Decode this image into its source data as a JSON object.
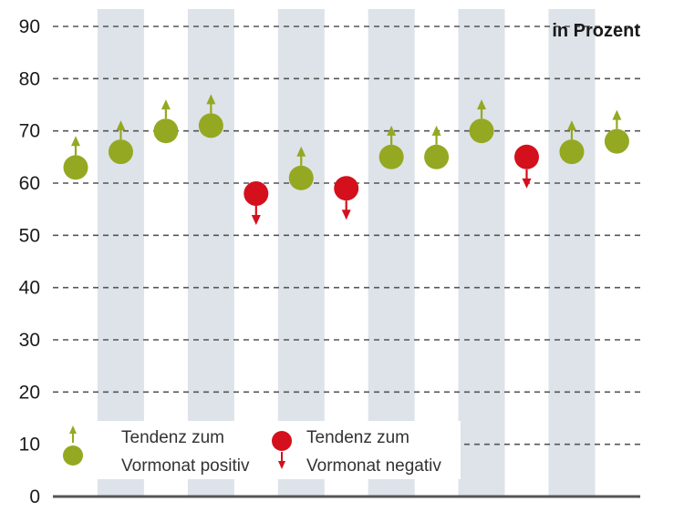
{
  "chart_data": {
    "type": "scatter",
    "unit_label": "in Prozent",
    "ylim": [
      0,
      90
    ],
    "yticks": [
      0,
      10,
      20,
      30,
      40,
      50,
      60,
      70,
      80,
      90
    ],
    "ytick_labels": [
      "0",
      "10",
      "20",
      "30",
      "40",
      "50",
      "60",
      "70",
      "80",
      "90"
    ],
    "grid": true,
    "legend_placement": "bottom-left",
    "points": [
      {
        "index": 1,
        "value": 63,
        "trend": "positive"
      },
      {
        "index": 2,
        "value": 66,
        "trend": "positive"
      },
      {
        "index": 3,
        "value": 70,
        "trend": "positive"
      },
      {
        "index": 4,
        "value": 71,
        "trend": "positive"
      },
      {
        "index": 5,
        "value": 58,
        "trend": "negative"
      },
      {
        "index": 6,
        "value": 61,
        "trend": "positive"
      },
      {
        "index": 7,
        "value": 59,
        "trend": "negative"
      },
      {
        "index": 8,
        "value": 65,
        "trend": "positive"
      },
      {
        "index": 9,
        "value": 65,
        "trend": "positive"
      },
      {
        "index": 10,
        "value": 70,
        "trend": "positive"
      },
      {
        "index": 11,
        "value": 65,
        "trend": "negative"
      },
      {
        "index": 12,
        "value": 66,
        "trend": "positive"
      },
      {
        "index": 13,
        "value": 68,
        "trend": "positive"
      }
    ],
    "legend": {
      "positive": {
        "line1": "Tendenz zum",
        "line2": "Vormonat positiv"
      },
      "negative": {
        "line1": "Tendenz zum",
        "line2": "Vormonat negativ"
      }
    },
    "colors": {
      "positive": "#95a822",
      "negative": "#d4101c",
      "band": "#dde3e9",
      "grid": "#555555",
      "axis": "#555555"
    }
  }
}
